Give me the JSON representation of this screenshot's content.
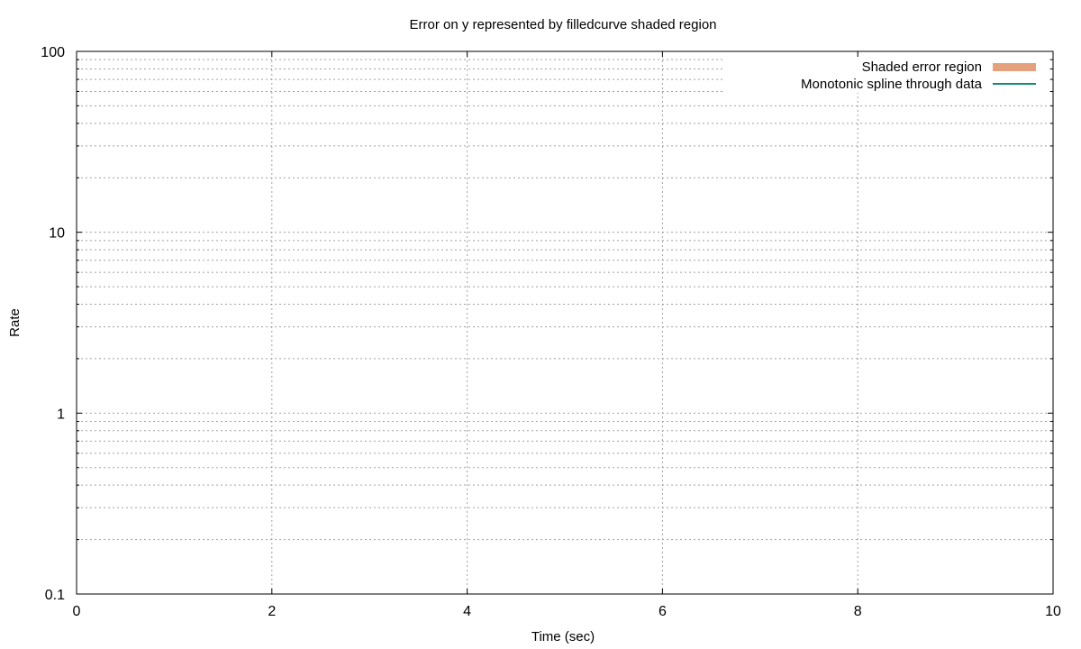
{
  "chart_data": {
    "type": "line",
    "title": "Error on y represented by filledcurve shaded region",
    "xlabel": "Time (sec)",
    "ylabel": "Rate",
    "xlim": [
      0,
      10
    ],
    "ylim": [
      0.1,
      100
    ],
    "yscale": "log",
    "grid": true,
    "legend_position": "top-right",
    "x_ticks": [
      {
        "value": 0,
        "label": "0"
      },
      {
        "value": 2,
        "label": "2"
      },
      {
        "value": 4,
        "label": "4"
      },
      {
        "value": 6,
        "label": "6"
      },
      {
        "value": 8,
        "label": "8"
      },
      {
        "value": 10,
        "label": "10"
      }
    ],
    "y_ticks": [
      {
        "value": 0.1,
        "label": "0.1"
      },
      {
        "value": 1,
        "label": "1"
      },
      {
        "value": 10,
        "label": "10"
      },
      {
        "value": 100,
        "label": "100"
      }
    ],
    "series": [
      {
        "name": "Shaded error region",
        "style": "filledcurve",
        "color": "#e5a07e",
        "x": [],
        "y_low": [],
        "y_high": []
      },
      {
        "name": "Monotonic spline through data",
        "style": "line",
        "color": "#0e8f6e",
        "x": [],
        "y": []
      }
    ]
  }
}
